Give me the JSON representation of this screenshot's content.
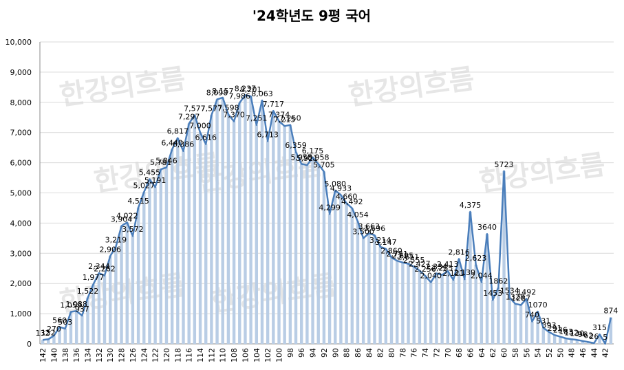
{
  "chart_data": {
    "type": "bar_line",
    "title": "'24학년도 9평 국어",
    "watermark": "한강의흐름",
    "categories": [
      "142",
      null,
      "140",
      null,
      "138",
      null,
      "136",
      null,
      "134",
      null,
      "132",
      null,
      "130",
      null,
      "128",
      null,
      "126",
      null,
      "124",
      null,
      "122",
      null,
      "120",
      null,
      "118",
      null,
      "116",
      null,
      "114",
      null,
      "112",
      null,
      "110",
      null,
      "108",
      null,
      "106",
      null,
      "104",
      null,
      "102",
      null,
      "100",
      null,
      "98",
      null,
      "96",
      null,
      "94",
      null,
      "92",
      null,
      "90",
      null,
      "88",
      null,
      "86",
      null,
      "84",
      null,
      "82",
      null,
      "80",
      null,
      "78",
      null,
      "76",
      null,
      "74",
      null,
      "72",
      null,
      "70",
      null,
      "68",
      null,
      "66",
      null,
      "64",
      null,
      "62",
      null,
      "60",
      null,
      "58",
      null,
      "56",
      null,
      "54",
      null,
      "52",
      null,
      "50",
      null,
      "48",
      null,
      "46",
      null,
      "44",
      null,
      "42",
      null
    ],
    "values": [
      132,
      152,
      270,
      560,
      503,
      1059,
      1088,
      937,
      1522,
      1977,
      2344,
      2262,
      2906,
      3219,
      3904,
      4022,
      3572,
      4515,
      5027,
      5455,
      5191,
      5781,
      5846,
      6440,
      6817,
      6386,
      7297,
      7577,
      7000,
      6616,
      7577,
      8098,
      8157,
      7598,
      7370,
      7986,
      8237,
      8201,
      7251,
      8063,
      6713,
      7717,
      7374,
      7215,
      7250,
      6359,
      5958,
      5921,
      6175,
      5958,
      5705,
      4299,
      5080,
      4933,
      4660,
      4492,
      4054,
      3500,
      3663,
      3596,
      3214,
      3147,
      2860,
      2751,
      2695,
      2651,
      2555,
      2427,
      2256,
      2040,
      2334,
      2285,
      2413,
      2121,
      2816,
      2139,
      4375,
      2623,
      2044,
      3640,
      1453,
      1862,
      5723,
      1534,
      1328,
      1287,
      1492,
      740,
      1070,
      531,
      393,
      291,
      236,
      183,
      152,
      130,
      96,
      62,
      26,
      315,
      5,
      874
    ],
    "value_labels": [
      "132",
      "152",
      "270",
      "560",
      "503",
      "1,059",
      "1,088",
      "937",
      "1,522",
      "1,977",
      "2,344",
      "2,262",
      "2,906",
      "3,219",
      "3,904",
      "4,022",
      "3,572",
      "4,515",
      "5,027",
      "5,455",
      "5,191",
      "5,781",
      "5,846",
      "6,440",
      "6,817",
      "6,386",
      "7,297",
      "7,577",
      "7,000",
      "6,616",
      "7,577",
      "8,098",
      "8,157",
      "7,598",
      "7,370",
      "7,986",
      "8,237",
      "8,201",
      "7,251",
      "8,063",
      "6,713",
      "7,717",
      "7,374",
      "7,215",
      "7,250",
      "6,359",
      "5,958",
      "5,921",
      "6,175",
      "5,958",
      "5,705",
      "4,299",
      "5,080",
      "4,933",
      "4,660",
      "4,492",
      "4,054",
      "3,500",
      "3,663",
      "3,596",
      "3,214",
      "3,147",
      "2,860",
      "2,751",
      "2,695",
      "2,651",
      "2,555",
      "2,427",
      "2,256",
      "2,040",
      "2,334",
      "2,285",
      "2,413",
      "2,121",
      "2,816",
      "2,139",
      "4,375",
      "2,623",
      "2,044",
      "3640",
      "1453",
      "1862",
      "5723",
      "1534",
      "1328",
      "1287",
      "1492",
      "740",
      "1070",
      "531",
      "393",
      "291",
      "236",
      "183",
      "152",
      "130",
      "96",
      "62",
      "26",
      "315",
      "5",
      "874"
    ],
    "bar_color": "#b9cde5",
    "line_color": "#4a7ebb",
    "ylim": [
      0,
      10000
    ],
    "yticks": [
      0,
      {
        "value": 1000,
        "label": "1,000"
      },
      {
        "value": 2000,
        "label": "2,000"
      },
      {
        "value": 3000,
        "label": "3,000"
      },
      {
        "value": 4000,
        "label": "4,000"
      },
      {
        "value": 5000,
        "label": "5,000"
      },
      {
        "value": 6000,
        "label": "6,000"
      },
      {
        "value": 7000,
        "label": "7,000"
      },
      {
        "value": 8000,
        "label": "8,000"
      },
      {
        "value": 9000,
        "label": "9,000"
      },
      {
        "value": 10000,
        "label": "10,000"
      }
    ],
    "grid": true
  }
}
